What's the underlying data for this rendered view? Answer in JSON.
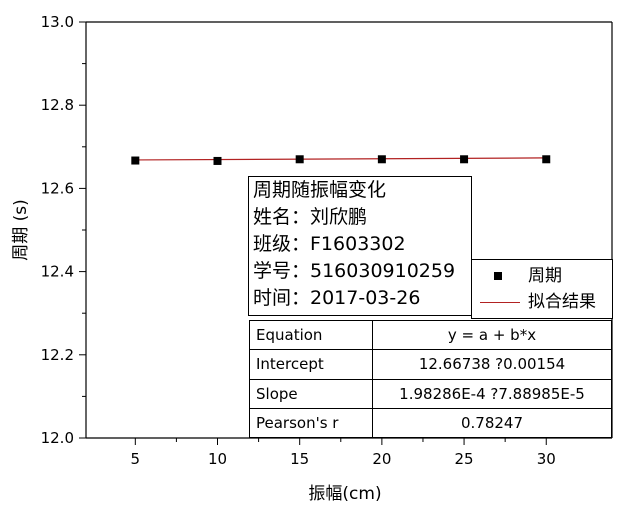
{
  "chart_data": {
    "type": "scatter",
    "xlabel": "振幅(cm)",
    "ylabel": "周期 (s)",
    "xlim": [
      2,
      34
    ],
    "ylim": [
      12.0,
      13.0
    ],
    "x_ticks": [
      5,
      10,
      15,
      20,
      25,
      30
    ],
    "y_ticks": [
      "12.0",
      "12.2",
      "12.4",
      "12.6",
      "12.8",
      "13.0"
    ],
    "grid": false,
    "legend_position": "right",
    "series": [
      {
        "name": "周期",
        "kind": "scatter",
        "marker": "square",
        "color": "#000000",
        "x": [
          5,
          10,
          15,
          20,
          25,
          30
        ],
        "y": [
          12.667,
          12.666,
          12.67,
          12.67,
          12.67,
          12.67
        ]
      },
      {
        "name": "拟合结果",
        "kind": "line",
        "color": "#b22222",
        "x": [
          5,
          30
        ],
        "y": [
          12.6684,
          12.6733
        ]
      }
    ],
    "info_lines": [
      "周期随振幅变化",
      "姓名：刘欣鹏",
      "班级：F1603302",
      "学号：516030910259",
      "时间：2017-03-26"
    ],
    "fit_table": [
      {
        "key": "Equation",
        "value": "y = a + b*x"
      },
      {
        "key": "Intercept",
        "value": "12.66738 ?0.00154"
      },
      {
        "key": "Slope",
        "value": "1.98286E-4 ?7.88985E-5"
      },
      {
        "key": "Pearson's r",
        "value": "0.78247"
      }
    ]
  }
}
